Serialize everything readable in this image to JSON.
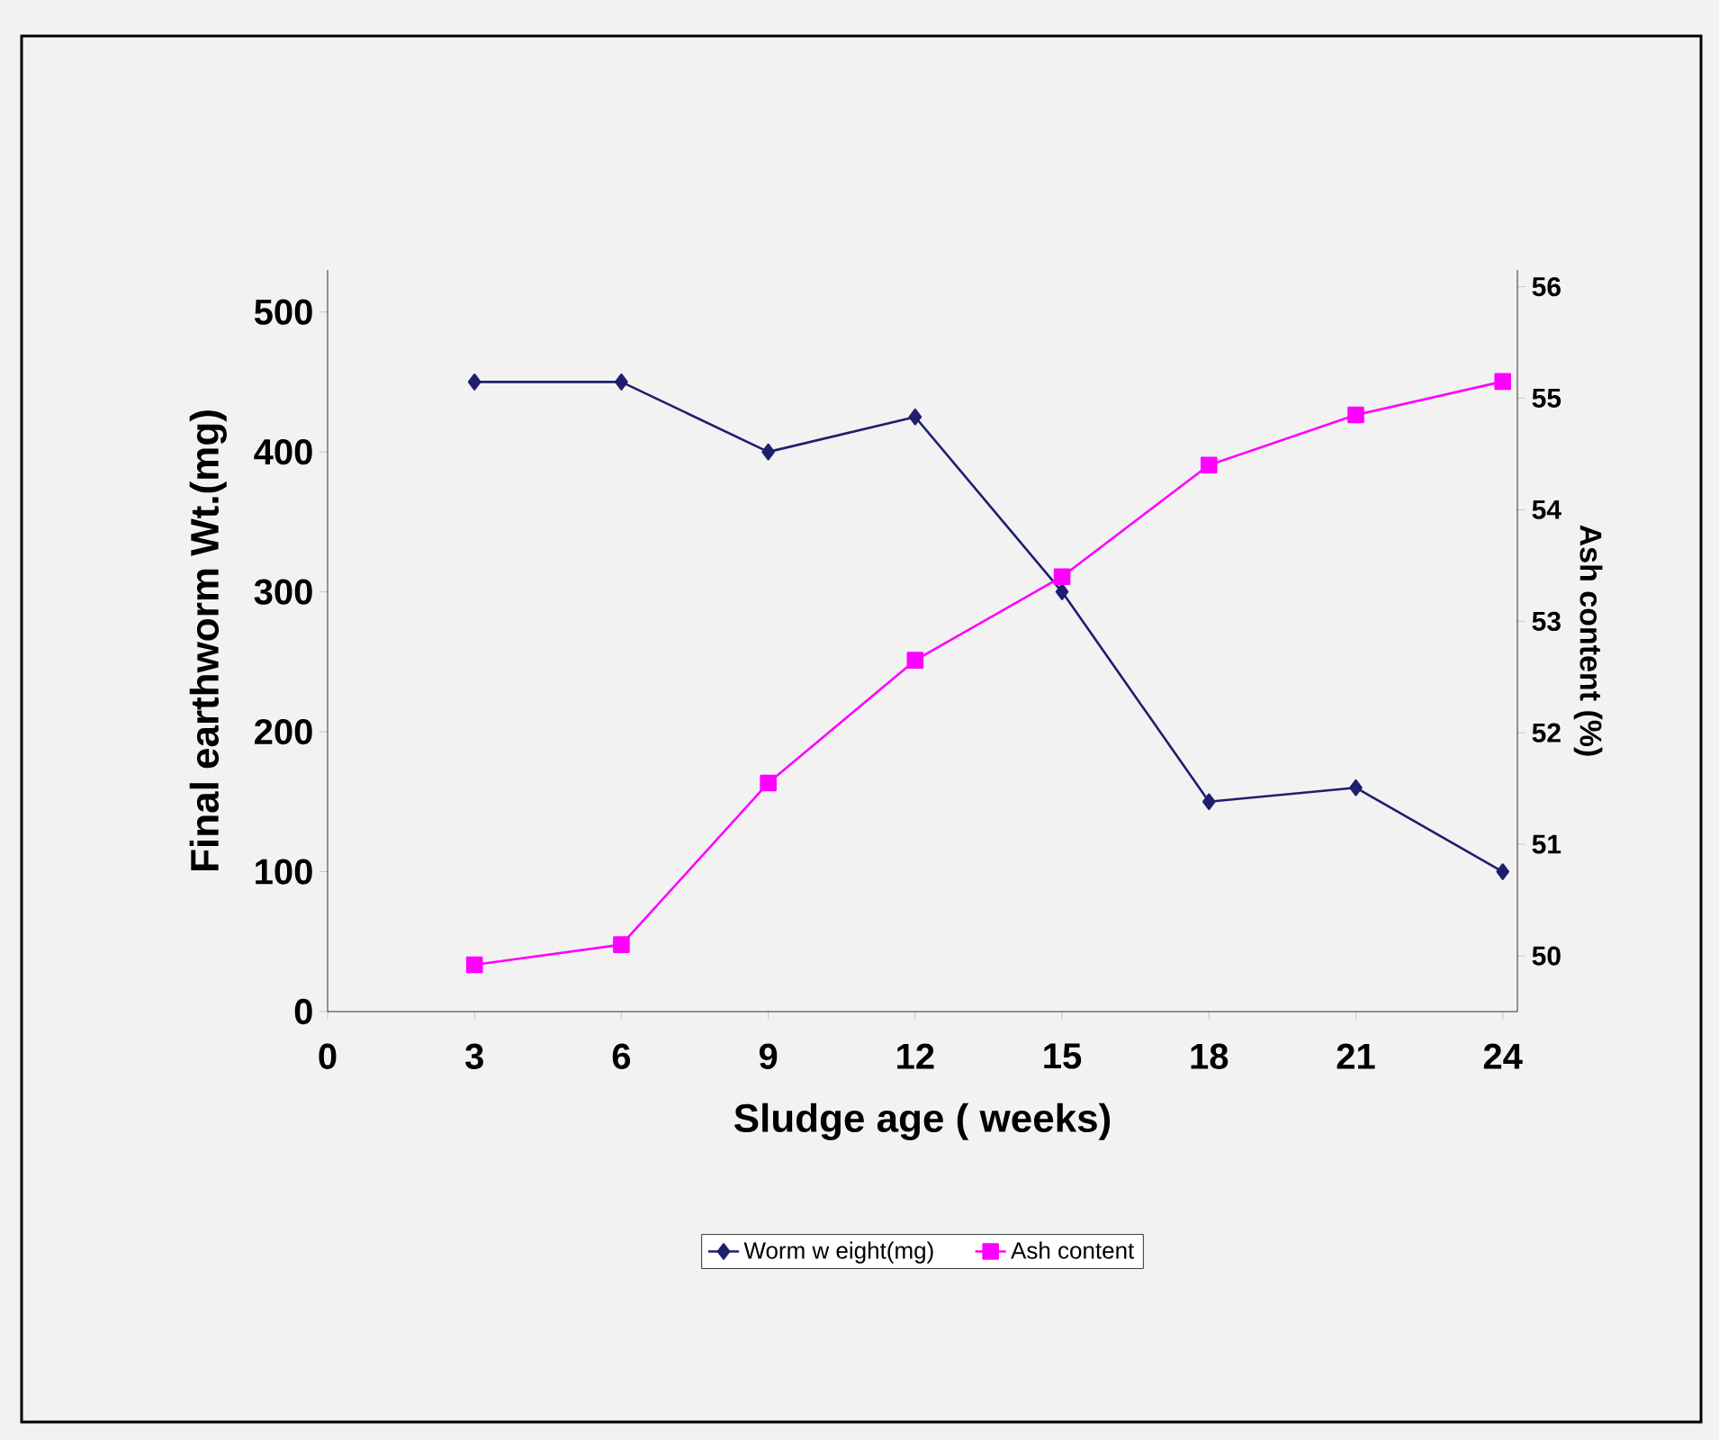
{
  "chart_data": {
    "type": "line",
    "xlabel": "Sludge age ( weeks)",
    "ylabel": "Final earthworm Wt.(mg)",
    "y2label": "Ash content (%)",
    "x": [
      3,
      6,
      9,
      12,
      15,
      18,
      21,
      24
    ],
    "series": [
      {
        "name": "Worm w eight(mg)",
        "color": "#1f1f6e",
        "marker": "diamond",
        "values": [
          450,
          450,
          400,
          425,
          300,
          150,
          160,
          100
        ]
      },
      {
        "name": "Ash content",
        "color": "#ff00ff",
        "marker": "square",
        "axis": "y2",
        "values": [
          49.92,
          50.1,
          51.55,
          52.65,
          53.4,
          54.4,
          54.85,
          55.15
        ]
      }
    ],
    "xlim": [
      0,
      24.3
    ],
    "xticks": [
      0,
      3,
      6,
      9,
      12,
      15,
      18,
      21,
      24
    ],
    "ylim": [
      0,
      530
    ],
    "yticks": [
      0,
      100,
      200,
      300,
      400,
      500
    ],
    "y2lim": [
      49.5,
      56.15
    ],
    "y2ticks": [
      50,
      51,
      52,
      53,
      54,
      55,
      56
    ],
    "grid": false,
    "legend": "bottom"
  }
}
